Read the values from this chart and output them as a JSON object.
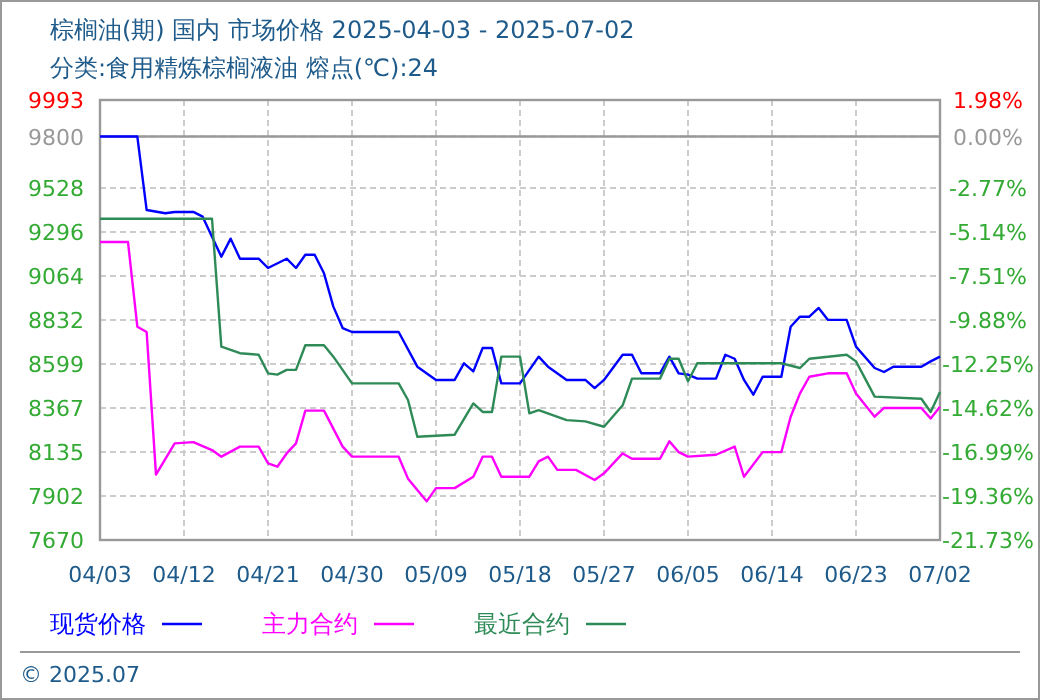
{
  "chart_data": {
    "type": "line",
    "title": "棕榈油(期) 国内 市场价格 2025-04-03 - 2025-07-02",
    "subtitle": "分类:食用精炼棕榈液油 熔点(℃):24",
    "annotations": [
      "© 2025.07"
    ],
    "xlim": [
      "2025-04-03",
      "2025-07-02"
    ],
    "xticks": [
      {
        "value": "2025-04-03",
        "label": "04/03"
      },
      {
        "value": "2025-04-12",
        "label": "04/12"
      },
      {
        "value": "2025-04-21",
        "label": "04/21"
      },
      {
        "value": "2025-04-30",
        "label": "04/30"
      },
      {
        "value": "2025-05-09",
        "label": "05/09"
      },
      {
        "value": "2025-05-18",
        "label": "05/18"
      },
      {
        "value": "2025-05-27",
        "label": "05/27"
      },
      {
        "value": "2025-06-05",
        "label": "06/05"
      },
      {
        "value": "2025-06-14",
        "label": "06/14"
      },
      {
        "value": "2025-06-23",
        "label": "06/23"
      },
      {
        "value": "2025-07-02",
        "label": "07/02"
      }
    ],
    "ylim": [
      7670,
      9993
    ],
    "yticks": [
      7670,
      7902,
      8135,
      8367,
      8599,
      8832,
      9064,
      9296,
      9528,
      9800,
      9993
    ],
    "y2lim": [
      -21.73,
      1.98
    ],
    "y2ticks": [
      {
        "value": 1.98,
        "label": "1.98%"
      },
      {
        "value": 0,
        "label": "0.00%"
      },
      {
        "value": -2.77,
        "label": "-2.77%"
      },
      {
        "value": -5.14,
        "label": "-5.14%"
      },
      {
        "value": -7.51,
        "label": "-7.51%"
      },
      {
        "value": -9.88,
        "label": "-9.88%"
      },
      {
        "value": -12.25,
        "label": "-12.25%"
      },
      {
        "value": -14.62,
        "label": "-14.62%"
      },
      {
        "value": -16.99,
        "label": "-16.99%"
      },
      {
        "value": -19.36,
        "label": "-19.36%"
      },
      {
        "value": -21.73,
        "label": "-21.73%"
      }
    ],
    "ref_lines": [
      {
        "axis": "y",
        "value": 9800,
        "color": "#999999"
      }
    ],
    "grid": true,
    "legend": "bottom left",
    "marker": "none",
    "line_style": "solid",
    "series": [
      {
        "name": "现货价格",
        "color": "#0000ff",
        "x": [
          "2025-04-03",
          "2025-04-07",
          "2025-04-08",
          "2025-04-10",
          "2025-04-11",
          "2025-04-13",
          "2025-04-14",
          "2025-04-15",
          "2025-04-16",
          "2025-04-17",
          "2025-04-18",
          "2025-04-20",
          "2025-04-21",
          "2025-04-23",
          "2025-04-24",
          "2025-04-25",
          "2025-04-26",
          "2025-04-27",
          "2025-04-28",
          "2025-04-29",
          "2025-04-30",
          "2025-05-05",
          "2025-05-07",
          "2025-05-09",
          "2025-05-11",
          "2025-05-12",
          "2025-05-13",
          "2025-05-14",
          "2025-05-15",
          "2025-05-16",
          "2025-05-18",
          "2025-05-20",
          "2025-05-21",
          "2025-05-23",
          "2025-05-25",
          "2025-05-26",
          "2025-05-27",
          "2025-05-29",
          "2025-05-30",
          "2025-05-31",
          "2025-06-02",
          "2025-06-03",
          "2025-06-04",
          "2025-06-05",
          "2025-06-06",
          "2025-06-08",
          "2025-06-09",
          "2025-06-10",
          "2025-06-11",
          "2025-06-12",
          "2025-06-13",
          "2025-06-15",
          "2025-06-16",
          "2025-06-17",
          "2025-06-18",
          "2025-06-19",
          "2025-06-20",
          "2025-06-22",
          "2025-06-23",
          "2025-06-25",
          "2025-06-26",
          "2025-06-27",
          "2025-06-30",
          "2025-07-01",
          "2025-07-02"
        ],
        "values": [
          9800,
          9800,
          9412,
          9395,
          9402,
          9402,
          9377,
          9271,
          9166,
          9261,
          9155,
          9155,
          9106,
          9155,
          9106,
          9176,
          9176,
          9078,
          8902,
          8789,
          8768,
          8768,
          8585,
          8515,
          8515,
          8603,
          8560,
          8684,
          8684,
          8497,
          8497,
          8638,
          8585,
          8515,
          8515,
          8472,
          8515,
          8648,
          8648,
          8550,
          8550,
          8638,
          8550,
          8543,
          8522,
          8522,
          8648,
          8627,
          8515,
          8437,
          8532,
          8532,
          8796,
          8849,
          8849,
          8895,
          8832,
          8832,
          8691,
          8578,
          8557,
          8585,
          8585,
          8613,
          8638
        ]
      },
      {
        "name": "主力合约",
        "color": "#ff00ff",
        "x": [
          "2025-04-03",
          "2025-04-06",
          "2025-04-07",
          "2025-04-08",
          "2025-04-09",
          "2025-04-11",
          "2025-04-13",
          "2025-04-15",
          "2025-04-16",
          "2025-04-18",
          "2025-04-20",
          "2025-04-21",
          "2025-04-22",
          "2025-04-23",
          "2025-04-24",
          "2025-04-25",
          "2025-04-27",
          "2025-04-29",
          "2025-04-30",
          "2025-05-05",
          "2025-05-06",
          "2025-05-08",
          "2025-05-09",
          "2025-05-11",
          "2025-05-13",
          "2025-05-14",
          "2025-05-15",
          "2025-05-16",
          "2025-05-19",
          "2025-05-20",
          "2025-05-21",
          "2025-05-22",
          "2025-05-24",
          "2025-05-26",
          "2025-05-27",
          "2025-05-29",
          "2025-05-30",
          "2025-06-02",
          "2025-06-03",
          "2025-06-04",
          "2025-06-05",
          "2025-06-08",
          "2025-06-10",
          "2025-06-11",
          "2025-06-13",
          "2025-06-15",
          "2025-06-16",
          "2025-06-17",
          "2025-06-18",
          "2025-06-20",
          "2025-06-22",
          "2025-06-23",
          "2025-06-25",
          "2025-06-26",
          "2025-06-30",
          "2025-07-01",
          "2025-07-02"
        ],
        "values": [
          9243,
          9243,
          8796,
          8768,
          8015,
          8180,
          8187,
          8145,
          8110,
          8163,
          8163,
          8075,
          8057,
          8127,
          8180,
          8353,
          8353,
          8163,
          8110,
          8110,
          7994,
          7874,
          7944,
          7944,
          8004,
          8110,
          8110,
          8004,
          8004,
          8085,
          8110,
          8040,
          8040,
          7987,
          8022,
          8127,
          8099,
          8099,
          8191,
          8134,
          8110,
          8120,
          8163,
          8004,
          8134,
          8134,
          8321,
          8444,
          8532,
          8550,
          8550,
          8444,
          8321,
          8367,
          8367,
          8311,
          8374
        ]
      },
      {
        "name": "最近合约",
        "color": "#2e8b57",
        "x": [
          "2025-04-03",
          "2025-04-15",
          "2025-04-16",
          "2025-04-18",
          "2025-04-20",
          "2025-04-21",
          "2025-04-22",
          "2025-04-23",
          "2025-04-24",
          "2025-04-25",
          "2025-04-27",
          "2025-04-28",
          "2025-04-30",
          "2025-05-05",
          "2025-05-06",
          "2025-05-07",
          "2025-05-11",
          "2025-05-13",
          "2025-05-14",
          "2025-05-15",
          "2025-05-16",
          "2025-05-18",
          "2025-05-19",
          "2025-05-20",
          "2025-05-23",
          "2025-05-25",
          "2025-05-27",
          "2025-05-29",
          "2025-05-30",
          "2025-06-02",
          "2025-06-03",
          "2025-06-04",
          "2025-06-05",
          "2025-06-06",
          "2025-06-15",
          "2025-06-17",
          "2025-06-18",
          "2025-06-22",
          "2025-06-23",
          "2025-06-25",
          "2025-06-30",
          "2025-07-01",
          "2025-07-02"
        ],
        "values": [
          9366,
          9366,
          8691,
          8656,
          8648,
          8550,
          8543,
          8568,
          8568,
          8698,
          8698,
          8638,
          8497,
          8497,
          8409,
          8215,
          8226,
          8391,
          8346,
          8346,
          8638,
          8638,
          8339,
          8356,
          8303,
          8296,
          8268,
          8381,
          8522,
          8522,
          8627,
          8627,
          8508,
          8603,
          8603,
          8578,
          8627,
          8648,
          8613,
          8427,
          8416,
          8346,
          8451
        ]
      }
    ]
  }
}
